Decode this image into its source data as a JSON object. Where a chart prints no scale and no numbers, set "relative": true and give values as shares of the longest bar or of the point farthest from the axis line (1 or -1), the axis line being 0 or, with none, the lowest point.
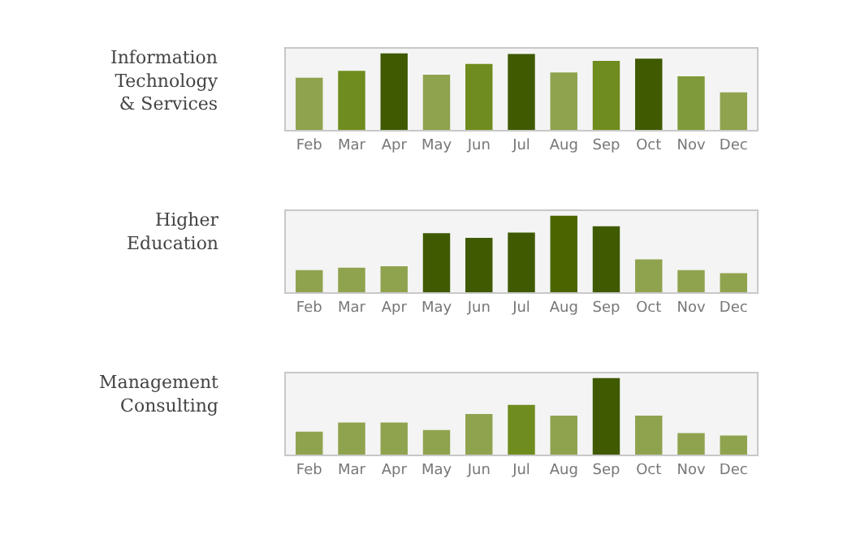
{
  "chart_data": [
    {
      "type": "bar",
      "title": "Information\nTechnology\n& Services",
      "relative": true,
      "categories": [
        "Feb",
        "Mar",
        "Apr",
        "May",
        "Jun",
        "Jul",
        "Aug",
        "Sep",
        "Oct",
        "Nov",
        "Dec"
      ],
      "values": [
        0.68,
        0.77,
        1,
        0.72,
        0.86,
        0.99,
        0.75,
        0.9,
        0.93,
        0.7,
        0.49
      ],
      "colors": [
        "#8fa34e",
        "#6f8c1e",
        "#3f5a00",
        "#8fa34e",
        "#6f8c1e",
        "#3f5a00",
        "#8fa34e",
        "#6f8c1e",
        "#3f5a00",
        "#7f9a3a",
        "#8fa34e"
      ],
      "grid": false
    },
    {
      "type": "bar",
      "title": "Higher\nEducation",
      "relative": true,
      "categories": [
        "Feb",
        "Mar",
        "Apr",
        "May",
        "Jun",
        "Jul",
        "Aug",
        "Sep",
        "Oct",
        "Nov",
        "Dec"
      ],
      "values": [
        0.29,
        0.32,
        0.34,
        0.77,
        0.71,
        0.78,
        1,
        0.86,
        0.43,
        0.29,
        0.25
      ],
      "colors": [
        "#8fa34e",
        "#8fa34e",
        "#8fa34e",
        "#3f5a00",
        "#3f5a00",
        "#3f5a00",
        "#4a6500",
        "#3f5a00",
        "#8fa34e",
        "#8fa34e",
        "#8fa34e"
      ],
      "grid": false
    },
    {
      "type": "bar",
      "title": "Management\nConsulting",
      "relative": true,
      "categories": [
        "Feb",
        "Mar",
        "Apr",
        "May",
        "Jun",
        "Jul",
        "Aug",
        "Sep",
        "Oct",
        "Nov",
        "Dec"
      ],
      "values": [
        0.3,
        0.42,
        0.42,
        0.32,
        0.53,
        0.65,
        0.51,
        1,
        0.51,
        0.28,
        0.25
      ],
      "colors": [
        "#8fa34e",
        "#8fa34e",
        "#8fa34e",
        "#8fa34e",
        "#8fa34e",
        "#6f8c1e",
        "#8fa34e",
        "#3f5a00",
        "#8fa34e",
        "#8fa34e",
        "#8fa34e"
      ],
      "grid": false
    }
  ]
}
